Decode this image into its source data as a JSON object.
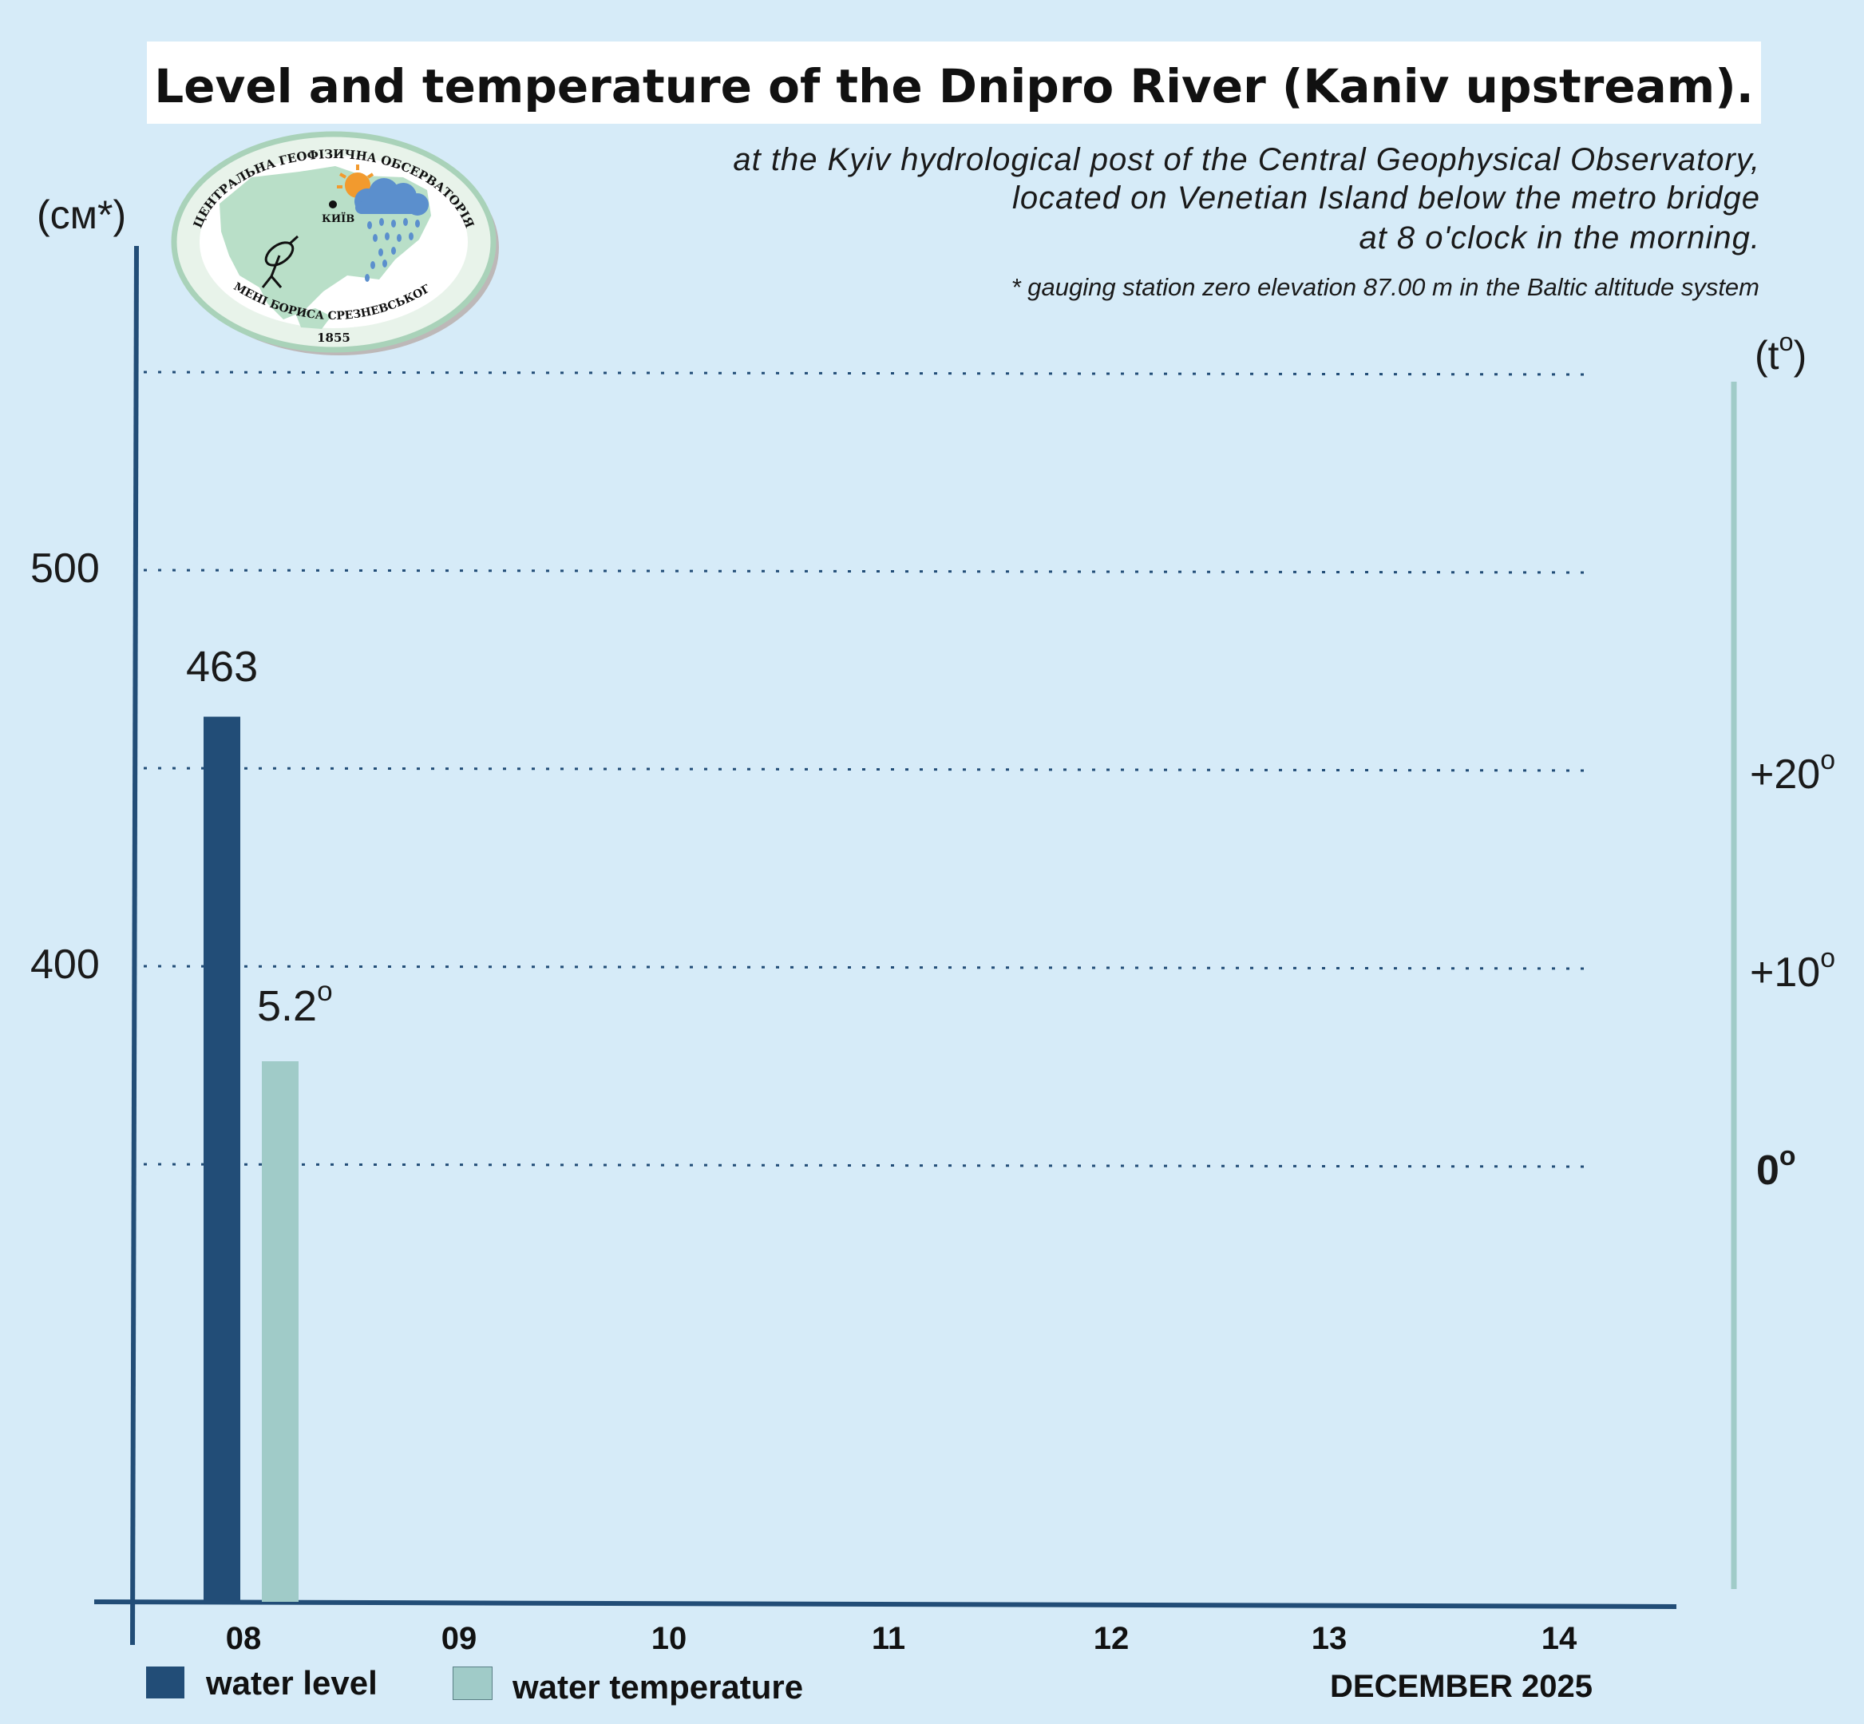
{
  "title": "Level and temperature of the Dnipro River (Kaniv upstream).",
  "subtitle_lines": [
    "at the Kyiv hydrological post of the Central Geophysical Observatory,",
    "located on Venetian Island below the metro bridge",
    "at 8 o'clock in the morning."
  ],
  "footnote": "* gauging station zero elevation 87.00 m in the Baltic altitude system",
  "logo": {
    "top_text": "ЦЕНТРАЛЬНА ГЕОФІЗИЧНА ОБСЕРВАТОРІЯ",
    "bottom_text": "ІМЕНІ БОРИСА СРЕЗНЕВСЬКОГО",
    "year": "1855",
    "city": "КИЇВ"
  },
  "colors": {
    "background": "#d6ebf8",
    "water_level": "#224d77",
    "water_temperature": "#a0cbc8",
    "axis": "#224d77",
    "temp_axis": "#a0cbc8"
  },
  "chart_data": {
    "type": "bar",
    "categories": [
      "08",
      "09",
      "10",
      "11",
      "12",
      "13",
      "14"
    ],
    "series": [
      {
        "name": "water level",
        "axis": "left",
        "values": [
          463,
          null,
          null,
          null,
          null,
          null,
          null
        ],
        "labels": [
          "463"
        ]
      },
      {
        "name": "water temperature",
        "axis": "right",
        "values": [
          5.2,
          null,
          null,
          null,
          null,
          null,
          null
        ],
        "labels": [
          "5.2"
        ]
      }
    ],
    "left_axis": {
      "label": "(см*)",
      "ticks": [
        "500",
        "400"
      ],
      "tick_values": [
        500,
        400
      ],
      "range": [
        300,
        550
      ]
    },
    "right_axis": {
      "label": "(t",
      "label_suffix": ")",
      "ticks": [
        "+20",
        "+10",
        "0"
      ],
      "tick_values": [
        20,
        10,
        0
      ],
      "range": [
        -10,
        40
      ]
    },
    "degree_mark": "o",
    "gridlines": [
      550,
      500,
      450,
      400,
      350
    ],
    "xlabel": "DECEMBER 2025",
    "grid": true,
    "legend": {
      "position": "bottom-left",
      "items": [
        "water level",
        "water temperature"
      ]
    }
  }
}
